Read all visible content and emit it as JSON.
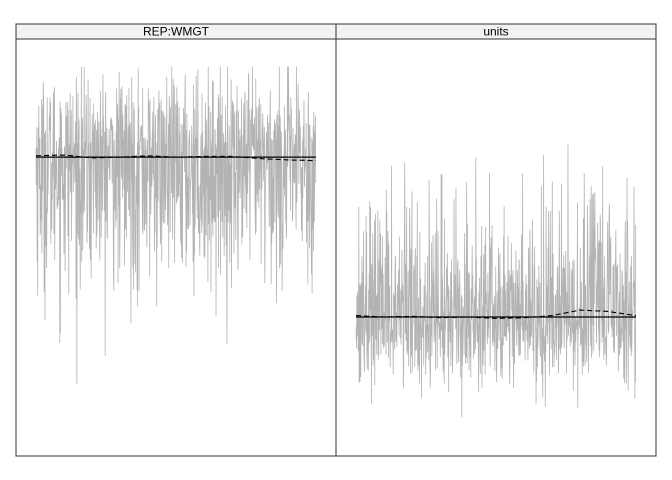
{
  "chart_data": [
    {
      "type": "line",
      "title": "REP:WMGT",
      "xlabel": "",
      "ylabel": "",
      "grid": false,
      "legend": "none",
      "trace": {
        "n_iterations": 1000,
        "center": 0.0,
        "spread": 1.0,
        "upper_extreme": 1.3,
        "lower_extreme": -3.6,
        "skew": "left",
        "color": "#b3b3b3"
      },
      "ylim": [
        -4.3,
        1.7
      ],
      "mean_line": {
        "value": 0.0,
        "color": "#000000",
        "style": "solid"
      },
      "running_mean": {
        "color": "#000000",
        "style": "dashed",
        "x": [
          0,
          100,
          200,
          300,
          400,
          500,
          600,
          700,
          800,
          900,
          1000
        ],
        "y": [
          0.02,
          0.03,
          -0.01,
          0.0,
          0.02,
          0.0,
          0.01,
          0.01,
          -0.02,
          -0.04,
          -0.05
        ]
      }
    },
    {
      "type": "line",
      "title": "units",
      "xlabel": "",
      "ylabel": "",
      "grid": false,
      "legend": "none",
      "trace": {
        "n_iterations": 1000,
        "center": 0.0,
        "spread": 0.85,
        "upper_extreme": 3.5,
        "lower_extreme": -1.6,
        "skew": "right",
        "color": "#b3b3b3"
      },
      "ylim": [
        -2.0,
        4.0
      ],
      "mean_line": {
        "value": 0.0,
        "color": "#000000",
        "style": "solid"
      },
      "running_mean": {
        "color": "#000000",
        "style": "dashed",
        "x": [
          0,
          100,
          200,
          300,
          400,
          500,
          600,
          700,
          800,
          900,
          1000
        ],
        "y": [
          0.02,
          0.0,
          0.01,
          -0.01,
          0.0,
          -0.02,
          -0.01,
          0.02,
          0.1,
          0.08,
          0.02
        ]
      }
    }
  ]
}
